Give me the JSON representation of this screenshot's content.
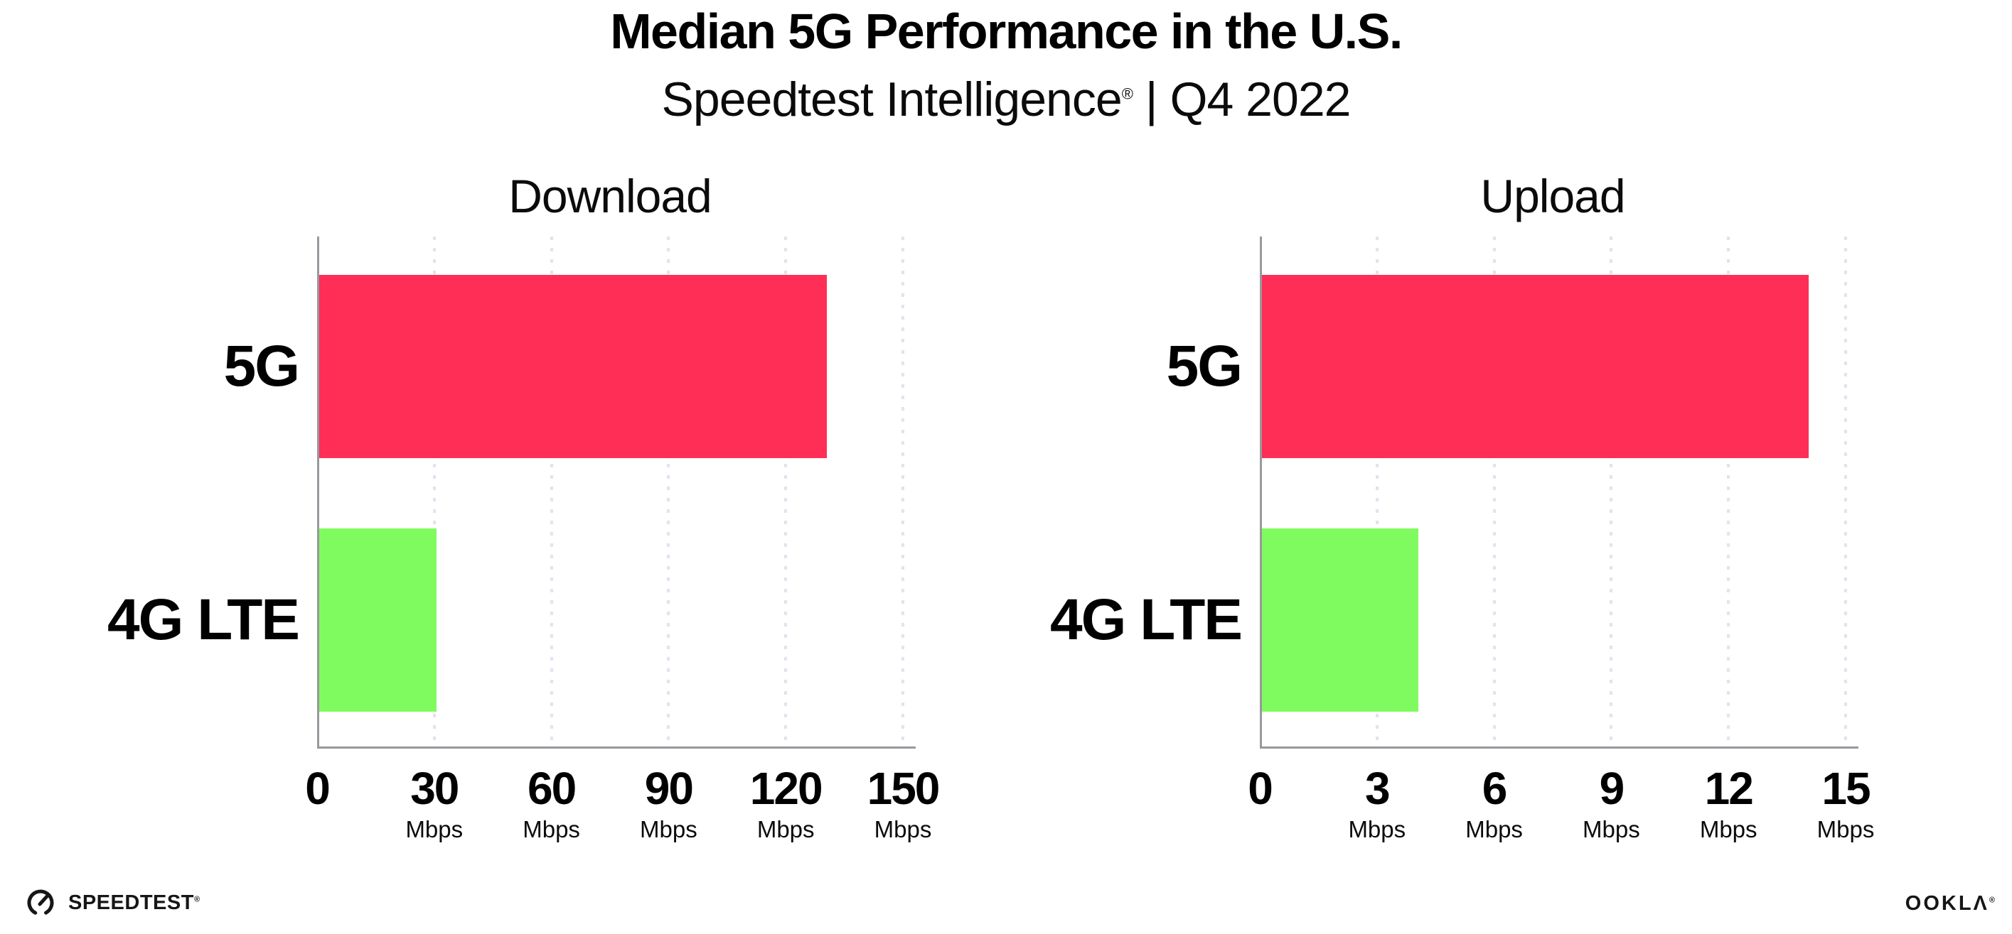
{
  "header": {
    "title": "Median 5G Performance in the U.S.",
    "subtitle_brand": "Speedtest Intelligence",
    "subtitle_registered": "®",
    "subtitle_separator": "|",
    "subtitle_period": "Q4 2022"
  },
  "chart_data": [
    {
      "type": "bar",
      "orientation": "horizontal",
      "title": "Download",
      "categories": [
        "5G",
        "4G LTE"
      ],
      "values": [
        130,
        30
      ],
      "unit": "Mbps",
      "xlim": [
        0,
        150
      ],
      "xticks": [
        0,
        30,
        60,
        90,
        120,
        150
      ],
      "grid": "vertical-dotted",
      "legend": "none",
      "colors": [
        "#FF2E56",
        "#80FB5F"
      ]
    },
    {
      "type": "bar",
      "orientation": "horizontal",
      "title": "Upload",
      "categories": [
        "5G",
        "4G LTE"
      ],
      "values": [
        14,
        4
      ],
      "unit": "Mbps",
      "xlim": [
        0,
        15
      ],
      "xticks": [
        0,
        3,
        6,
        9,
        12,
        15
      ],
      "grid": "vertical-dotted",
      "legend": "none",
      "colors": [
        "#FF2E56",
        "#80FB5F"
      ]
    }
  ],
  "footer": {
    "speedtest_wordmark": "SPEEDTEST",
    "speedtest_registered": "®",
    "ookla_wordmark_prefix": "OOKL",
    "ookla_wordmark_a": "Λ",
    "ookla_registered": "®"
  },
  "colors": {
    "bar_5g": "#FF2E56",
    "bar_4g_lte": "#80FB5F",
    "axis": "#98989E",
    "gridline": "#E3E2EE",
    "text": "#000000"
  }
}
